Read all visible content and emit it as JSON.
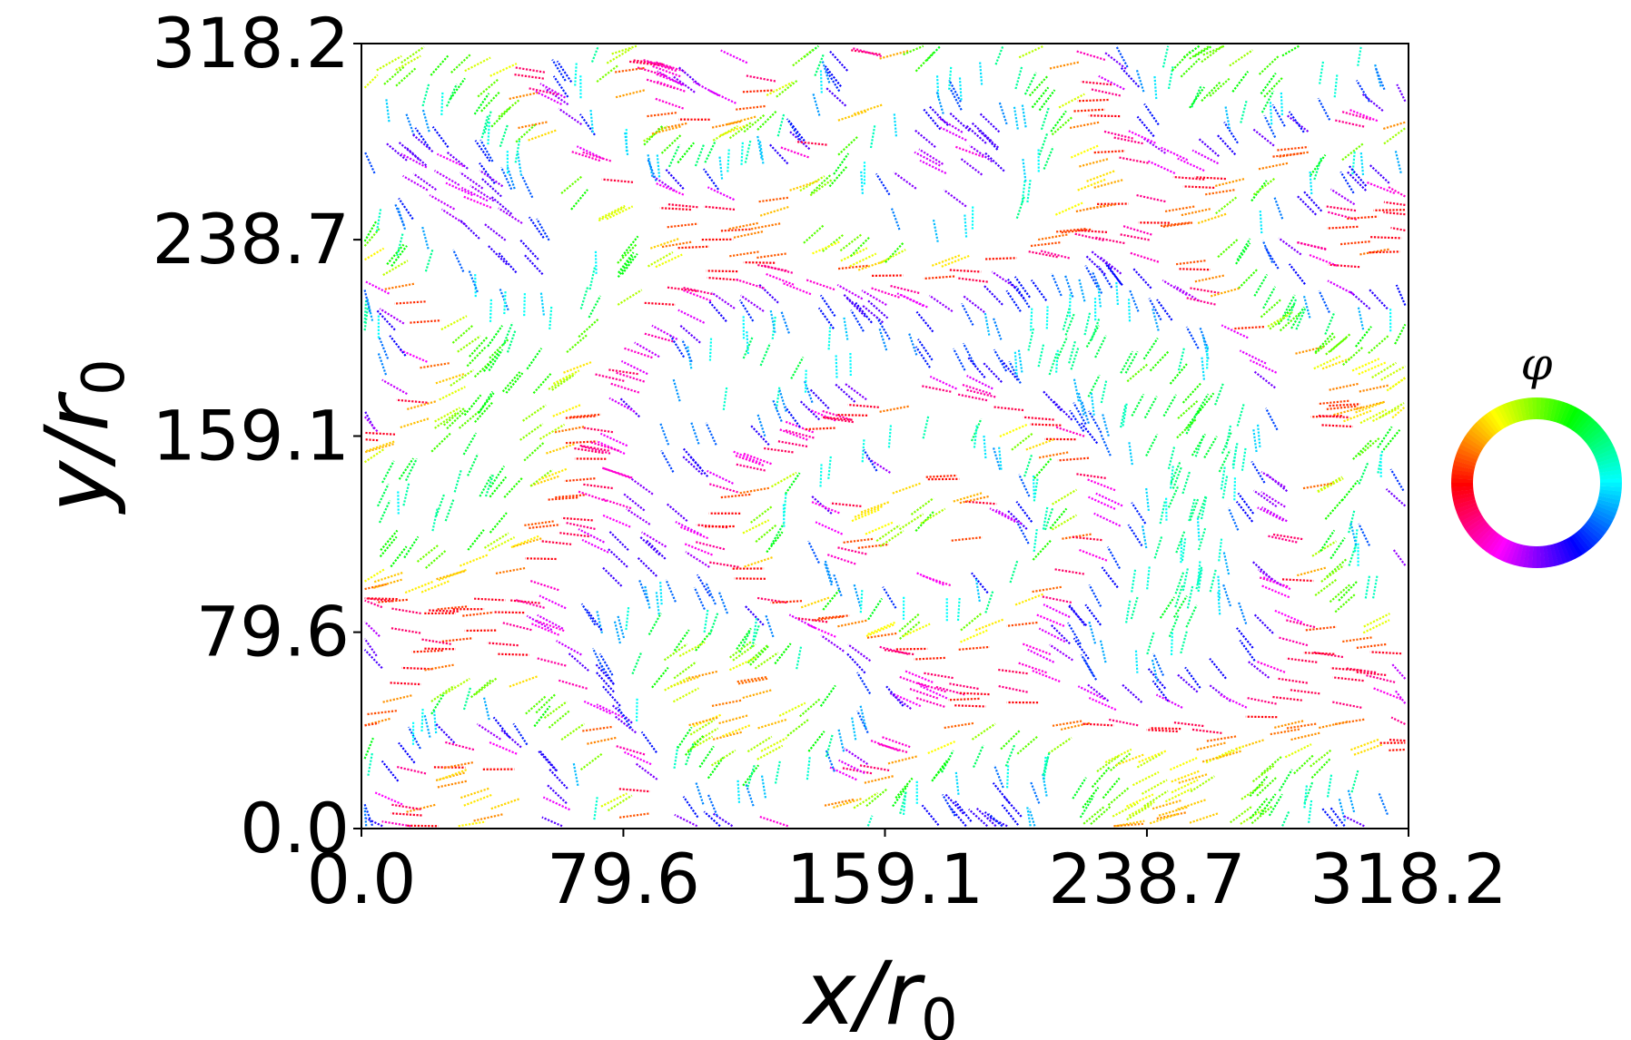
{
  "chart_data": {
    "type": "scatter",
    "description_kind": "orientation field of rod-like filaments, colored by orientation angle phi",
    "xlabel": "x/r0",
    "ylabel": "y/r0",
    "xlabel_main": "x/r",
    "xlabel_sub": "0",
    "ylabel_main": "y/r",
    "ylabel_sub": "0",
    "xlim": [
      0.0,
      318.2
    ],
    "ylim": [
      0.0,
      318.2
    ],
    "xticks": [
      "0.0",
      "79.6",
      "159.1",
      "238.7",
      "318.2"
    ],
    "yticks": [
      "0.0",
      "79.6",
      "159.1",
      "238.7",
      "318.2"
    ],
    "xtick_values": [
      0.0,
      79.6,
      159.1,
      238.7,
      318.2
    ],
    "ytick_values": [
      0.0,
      79.6,
      159.1,
      238.7,
      318.2
    ],
    "grid": false,
    "colorbar": {
      "label": "φ",
      "type": "hue-wheel",
      "colors": [
        "#ff0000",
        "#ffff00",
        "#00ff00",
        "#00ffff",
        "#0000ff",
        "#ff00ff"
      ]
    },
    "filament_length": 9.5,
    "filament_count": 1600
  }
}
